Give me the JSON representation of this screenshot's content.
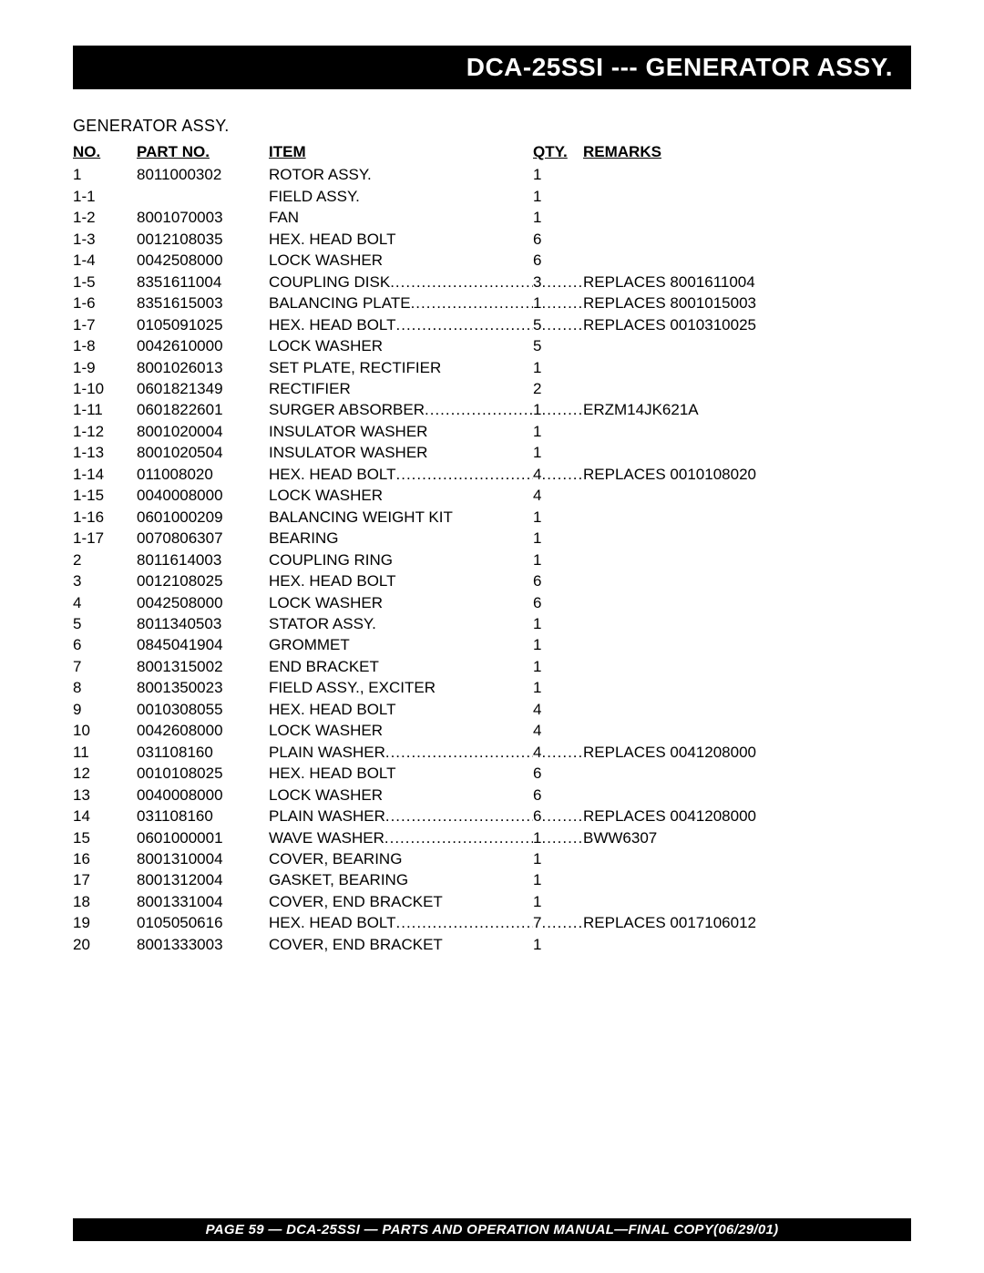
{
  "header": {
    "title": "DCA-25SSI --- GENERATOR ASSY."
  },
  "section_title": "GENERATOR ASSY.",
  "columns": {
    "no": "NO.",
    "part": "PART NO.",
    "item": "ITEM",
    "qty": "QTY.",
    "remarks": "REMARKS"
  },
  "rows": [
    {
      "no": "1",
      "part": "8011000302",
      "item": "ROTOR ASSY.",
      "qty": "1",
      "remarks": "",
      "dotted": false
    },
    {
      "no": "1-1",
      "part": "",
      "item": "FIELD ASSY.",
      "qty": "1",
      "remarks": "",
      "dotted": false
    },
    {
      "no": "1-2",
      "part": "8001070003",
      "item": "FAN",
      "qty": "1",
      "remarks": "",
      "dotted": false
    },
    {
      "no": "1-3",
      "part": "0012108035",
      "item": "HEX. HEAD BOLT",
      "qty": "6",
      "remarks": "",
      "dotted": false
    },
    {
      "no": "1-4",
      "part": "0042508000",
      "item": "LOCK WASHER",
      "qty": "6",
      "remarks": "",
      "dotted": false
    },
    {
      "no": "1-5",
      "part": "8351611004",
      "item": "COUPLING DISK",
      "qty": "3",
      "remarks": "REPLACES 8001611004",
      "dotted": true
    },
    {
      "no": "1-6",
      "part": "8351615003",
      "item": "BALANCING PLATE",
      "qty": "1",
      "remarks": "REPLACES 8001015003",
      "dotted": true
    },
    {
      "no": "1-7",
      "part": "0105091025",
      "item": "HEX. HEAD BOLT",
      "qty": "5",
      "remarks": "REPLACES 0010310025",
      "dotted": true
    },
    {
      "no": "1-8",
      "part": "0042610000",
      "item": "LOCK WASHER",
      "qty": "5",
      "remarks": "",
      "dotted": false
    },
    {
      "no": "1-9",
      "part": "8001026013",
      "item": "SET PLATE, RECTIFIER",
      "qty": "1",
      "remarks": "",
      "dotted": false
    },
    {
      "no": "1-10",
      "part": "0601821349",
      "item": "RECTIFIER",
      "qty": "2",
      "remarks": "",
      "dotted": false
    },
    {
      "no": "1-11",
      "part": "0601822601",
      "item": "SURGER ABSORBER",
      "qty": "1",
      "remarks": "ERZM14JK621A",
      "dotted": true
    },
    {
      "no": "1-12",
      "part": "8001020004",
      "item": "INSULATOR WASHER",
      "qty": "1",
      "remarks": "",
      "dotted": false
    },
    {
      "no": "1-13",
      "part": "8001020504",
      "item": "INSULATOR WASHER",
      "qty": "1",
      "remarks": "",
      "dotted": false
    },
    {
      "no": "1-14",
      "part": "011008020",
      "item": "HEX. HEAD BOLT",
      "qty": "4",
      "remarks": "REPLACES 0010108020",
      "dotted": true
    },
    {
      "no": "1-15",
      "part": "0040008000",
      "item": "LOCK WASHER",
      "qty": "4",
      "remarks": "",
      "dotted": false
    },
    {
      "no": "1-16",
      "part": "0601000209",
      "item": "BALANCING WEIGHT KIT",
      "qty": "1",
      "remarks": "",
      "dotted": false
    },
    {
      "no": "1-17",
      "part": "0070806307",
      "item": "BEARING",
      "qty": "1",
      "remarks": "",
      "dotted": false
    },
    {
      "no": "2",
      "part": "8011614003",
      "item": "COUPLING RING",
      "qty": "1",
      "remarks": "",
      "dotted": false
    },
    {
      "no": "3",
      "part": "0012108025",
      "item": "HEX. HEAD BOLT",
      "qty": "6",
      "remarks": "",
      "dotted": false
    },
    {
      "no": "4",
      "part": "0042508000",
      "item": "LOCK WASHER",
      "qty": "6",
      "remarks": "",
      "dotted": false
    },
    {
      "no": "5",
      "part": "8011340503",
      "item": "STATOR ASSY.",
      "qty": "1",
      "remarks": "",
      "dotted": false
    },
    {
      "no": "6",
      "part": "0845041904",
      "item": "GROMMET",
      "qty": "1",
      "remarks": "",
      "dotted": false
    },
    {
      "no": "7",
      "part": "8001315002",
      "item": "END BRACKET",
      "qty": "1",
      "remarks": "",
      "dotted": false
    },
    {
      "no": "8",
      "part": "8001350023",
      "item": "FIELD ASSY., EXCITER",
      "qty": "1",
      "remarks": "",
      "dotted": false
    },
    {
      "no": "9",
      "part": "0010308055",
      "item": "HEX. HEAD BOLT",
      "qty": "4",
      "remarks": "",
      "dotted": false
    },
    {
      "no": "10",
      "part": "0042608000",
      "item": "LOCK WASHER",
      "qty": "4",
      "remarks": "",
      "dotted": false
    },
    {
      "no": "11",
      "part": "031108160",
      "item": "PLAIN WASHER",
      "qty": "4",
      "remarks": "REPLACES 0041208000",
      "dotted": true
    },
    {
      "no": "12",
      "part": "0010108025",
      "item": "HEX. HEAD BOLT",
      "qty": "6",
      "remarks": "",
      "dotted": false
    },
    {
      "no": "13",
      "part": "0040008000",
      "item": "LOCK WASHER",
      "qty": "6",
      "remarks": "",
      "dotted": false
    },
    {
      "no": "14",
      "part": "031108160",
      "item": "PLAIN WASHER",
      "qty": "6",
      "remarks": "REPLACES 0041208000",
      "dotted": true
    },
    {
      "no": "15",
      "part": "0601000001",
      "item": "WAVE WASHER",
      "qty": "1",
      "remarks": "BWW6307",
      "dotted": true
    },
    {
      "no": "16",
      "part": "8001310004",
      "item": "COVER, BEARING",
      "qty": "1",
      "remarks": "",
      "dotted": false
    },
    {
      "no": "17",
      "part": "8001312004",
      "item": "GASKET, BEARING",
      "qty": "1",
      "remarks": "",
      "dotted": false
    },
    {
      "no": "18",
      "part": "8001331004",
      "item": "COVER, END BRACKET",
      "qty": "1",
      "remarks": "",
      "dotted": false
    },
    {
      "no": "19",
      "part": "0105050616",
      "item": "HEX. HEAD BOLT",
      "qty": "7",
      "remarks": "REPLACES 0017106012",
      "dotted": true
    },
    {
      "no": "20",
      "part": "8001333003",
      "item": "COVER, END BRACKET",
      "qty": "1",
      "remarks": "",
      "dotted": false
    }
  ],
  "footer": {
    "text": "PAGE 59 — DCA-25SSI — PARTS AND OPERATION  MANUAL—FINAL COPY(06/29/01)"
  }
}
